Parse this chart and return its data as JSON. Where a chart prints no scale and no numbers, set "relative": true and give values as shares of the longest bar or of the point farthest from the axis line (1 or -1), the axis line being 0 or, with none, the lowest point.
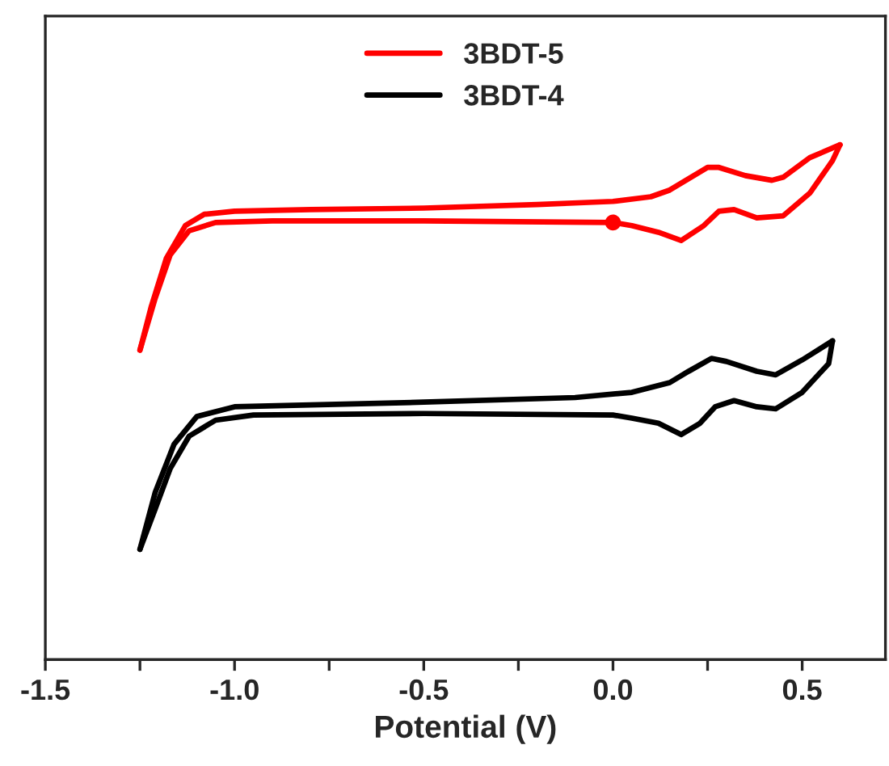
{
  "chart_data": {
    "type": "line",
    "xlabel": "Potential (V)",
    "relative": true,
    "legend": "top",
    "grid": false,
    "xlim": [
      -1.5,
      0.72
    ],
    "xticks": [
      -1.5,
      {
        "value": -1.25,
        "label": null
      },
      {
        "value": -1.0,
        "label": "-1.0"
      },
      {
        "value": -0.75,
        "label": null
      },
      -0.5,
      {
        "value": -0.25,
        "label": null
      },
      {
        "value": 0.0,
        "label": "0.0"
      },
      {
        "value": 0.25,
        "label": null
      },
      0.5
    ],
    "series": [
      {
        "name": "3BDT-5",
        "color": "#ff0000",
        "x": [
          -1.25,
          -1.22,
          -1.18,
          -1.13,
          -1.08,
          -1.0,
          -0.8,
          -0.5,
          -0.2,
          0.0,
          0.1,
          0.15,
          0.2,
          0.25,
          0.28,
          0.35,
          0.42,
          0.45,
          0.52,
          0.6
        ],
        "values": [
          0.601,
          0.686,
          0.78,
          0.843,
          0.865,
          0.871,
          0.874,
          0.877,
          0.884,
          0.89,
          0.899,
          0.912,
          0.934,
          0.956,
          0.956,
          0.94,
          0.931,
          0.937,
          0.975,
          1.0
        ]
      },
      {
        "color": "#ff0000",
        "x": [
          -1.25,
          -1.21,
          -1.17,
          -1.12,
          -1.05,
          -0.9,
          -0.5,
          0.0,
          0.05,
          0.12,
          0.18,
          0.24,
          0.28,
          0.32,
          0.38,
          0.45,
          0.52,
          0.58,
          0.6
        ],
        "values": [
          0.601,
          0.701,
          0.786,
          0.833,
          0.849,
          0.852,
          0.852,
          0.849,
          0.843,
          0.83,
          0.814,
          0.843,
          0.871,
          0.874,
          0.858,
          0.862,
          0.906,
          0.969,
          1.0
        ]
      },
      {
        "name": "3BDT-4",
        "color": "#000000",
        "x": [
          -1.25,
          -1.21,
          -1.16,
          -1.1,
          -1.0,
          -0.5,
          -0.1,
          0.05,
          0.15,
          0.2,
          0.26,
          0.3,
          0.38,
          0.43,
          0.5,
          0.58
        ],
        "values": [
          0.214,
          0.324,
          0.418,
          0.472,
          0.491,
          0.5,
          0.509,
          0.519,
          0.538,
          0.56,
          0.585,
          0.579,
          0.56,
          0.553,
          0.582,
          0.619
        ]
      },
      {
        "color": "#000000",
        "x": [
          -1.25,
          -1.21,
          -1.17,
          -1.12,
          -1.05,
          -0.95,
          -0.5,
          0.0,
          0.05,
          0.12,
          0.18,
          0.23,
          0.27,
          0.32,
          0.38,
          0.43,
          0.5,
          0.57,
          0.58
        ],
        "values": [
          0.214,
          0.292,
          0.371,
          0.434,
          0.465,
          0.475,
          0.478,
          0.475,
          0.469,
          0.459,
          0.437,
          0.459,
          0.491,
          0.503,
          0.491,
          0.487,
          0.519,
          0.575,
          0.619
        ]
      },
      {
        "type": "scatter",
        "color": "#ff0000",
        "marker": "circle",
        "x": [
          0.0
        ],
        "values": [
          0.849
        ]
      }
    ]
  }
}
